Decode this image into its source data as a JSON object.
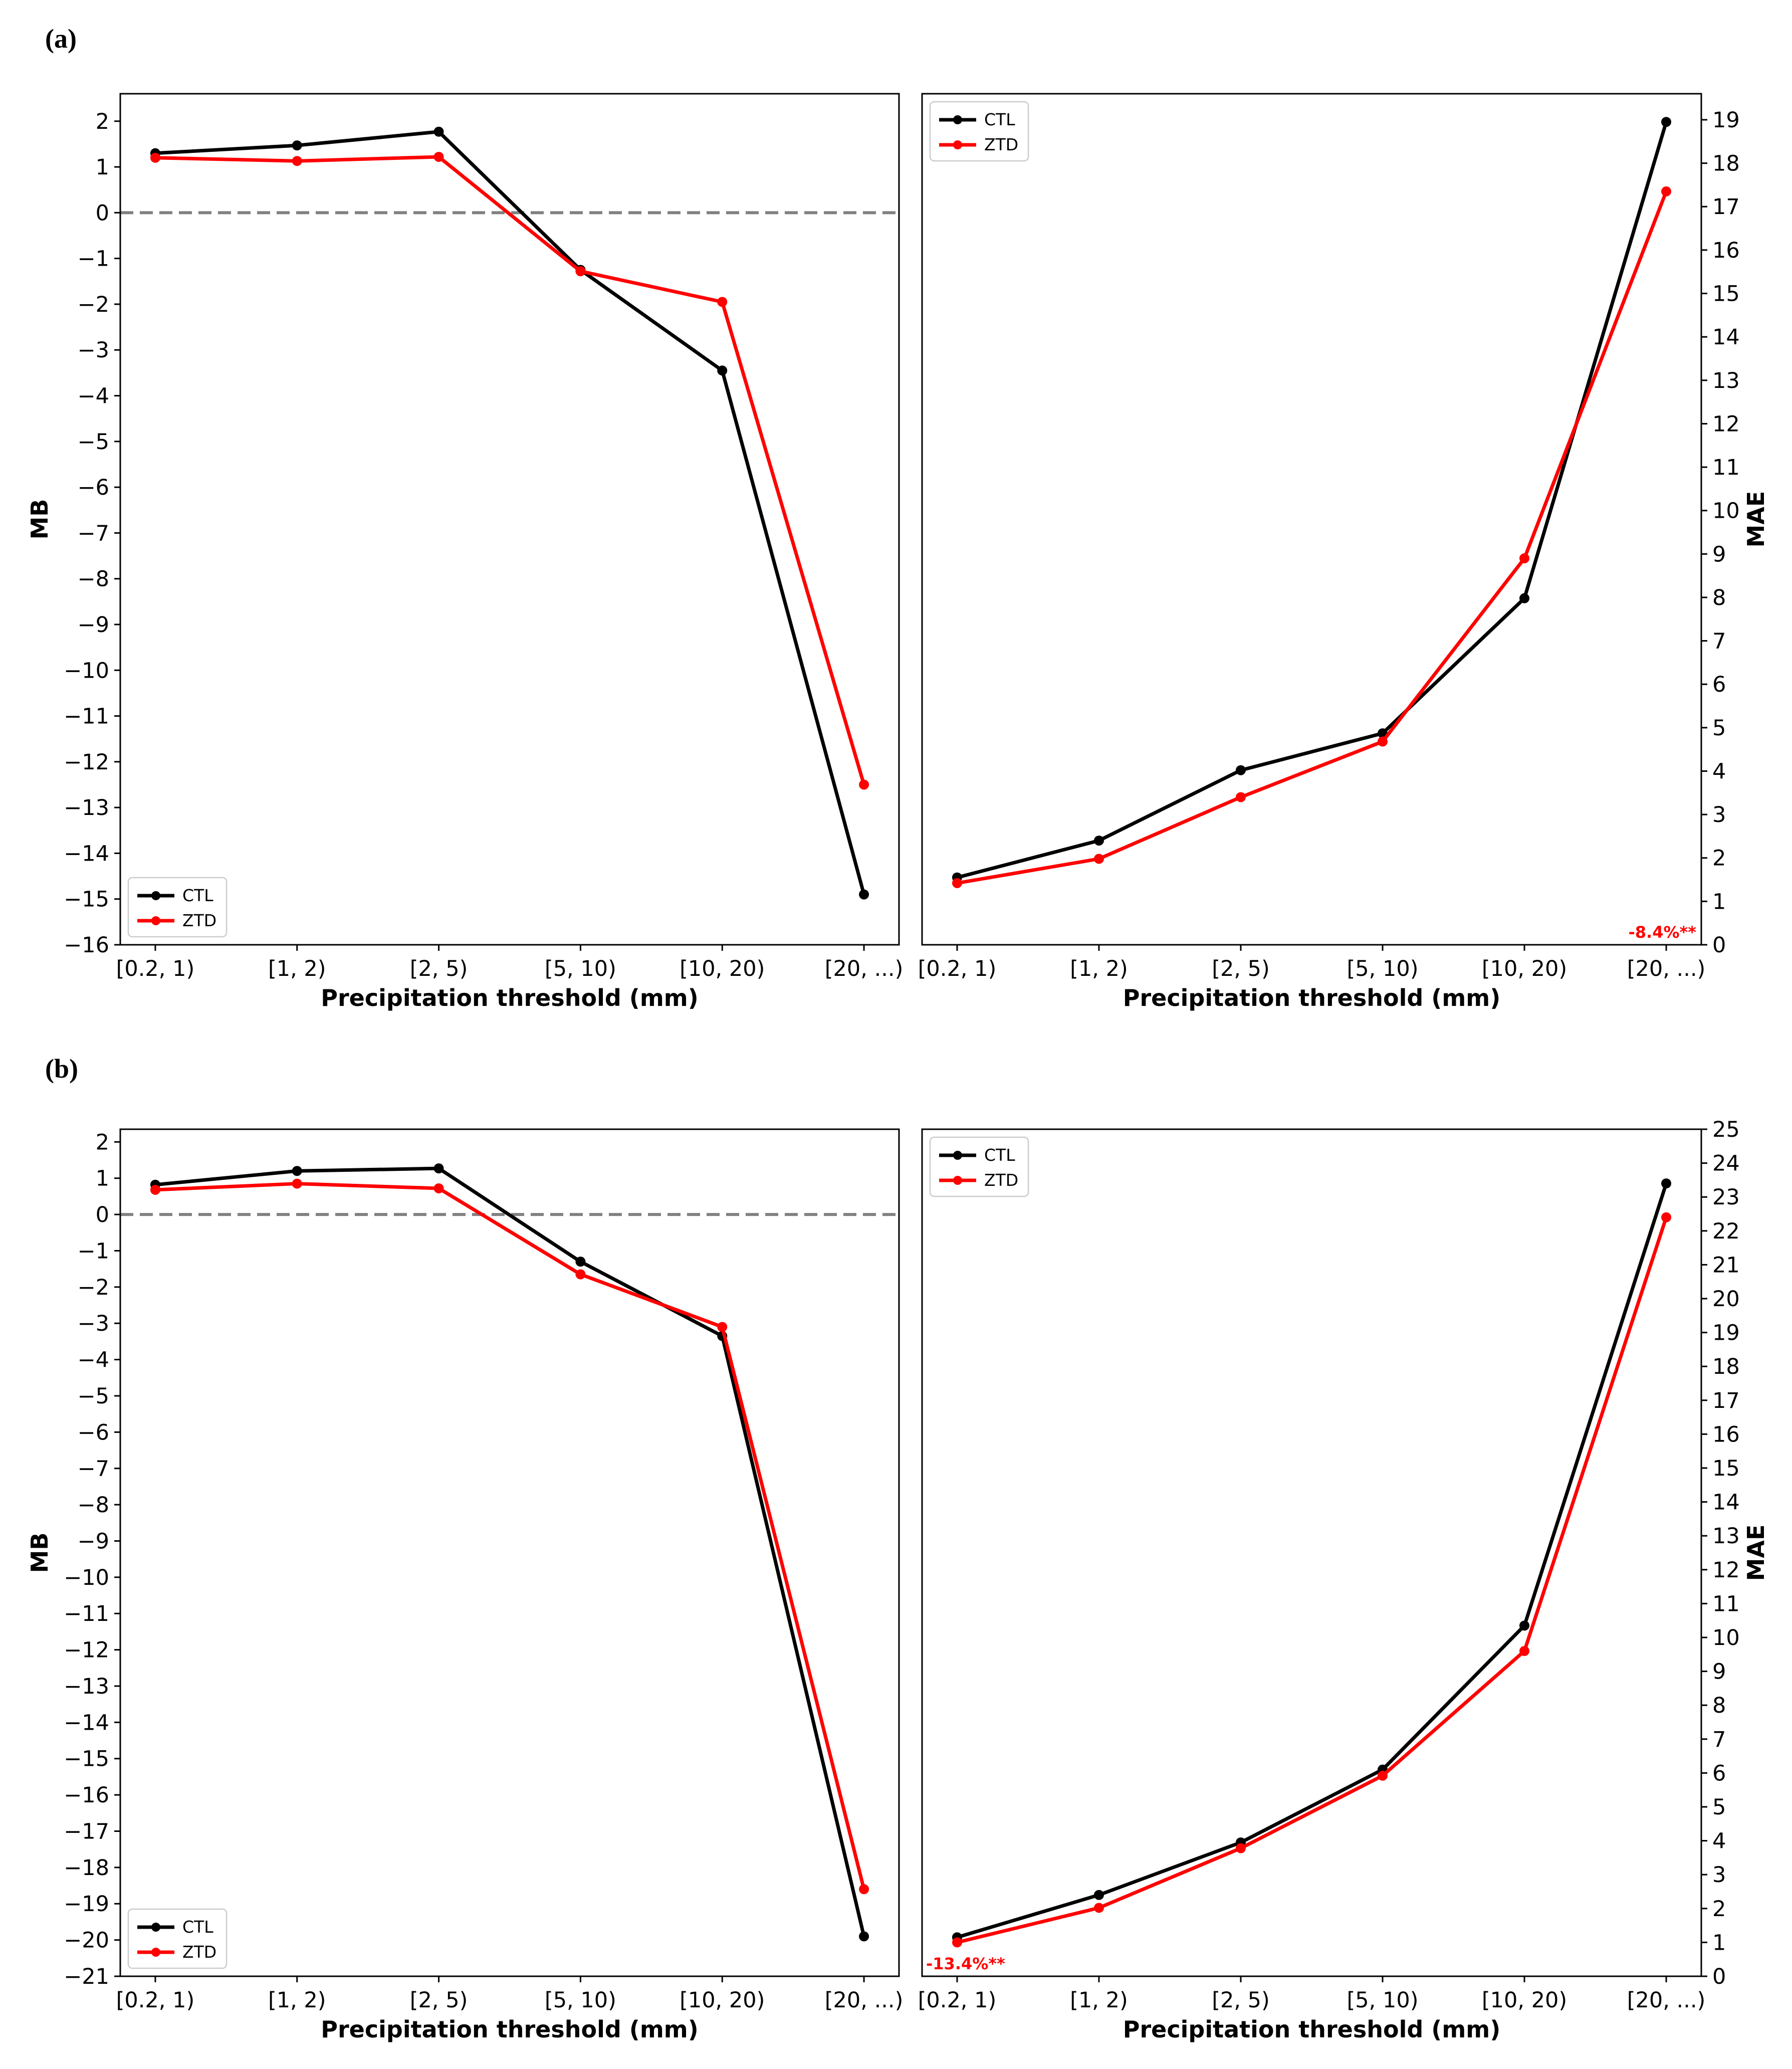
{
  "panels": [
    {
      "label": "(a)"
    },
    {
      "label": "(b)"
    }
  ],
  "colors": {
    "CTL": "#000000",
    "ZTD": "#ff0000",
    "zero_line": "#808080",
    "annotation": "#ff0000"
  },
  "chart_data": [
    {
      "panel": "(a)",
      "side": "left",
      "type": "line",
      "categories": [
        "[0.2, 1)",
        "[1, 2)",
        "[2, 5)",
        "[5, 10)",
        "[10, 20)",
        "[20, ...)"
      ],
      "xlabel": "Precipitation threshold (mm)",
      "ylabel": "MB",
      "ylim": [
        -16,
        2.6
      ],
      "yticks": [
        2,
        1,
        0,
        -1,
        -2,
        -3,
        -4,
        -5,
        -6,
        -7,
        -8,
        -9,
        -10,
        -11,
        -12,
        -13,
        -14,
        -15,
        -16
      ],
      "yaxis_side": "left",
      "zero_line": true,
      "legend": {
        "position": "lower-left",
        "entries": [
          "CTL",
          "ZTD"
        ]
      },
      "series": [
        {
          "name": "CTL",
          "values": [
            1.3,
            1.47,
            1.77,
            -1.25,
            -3.45,
            -14.9
          ]
        },
        {
          "name": "ZTD",
          "values": [
            1.2,
            1.13,
            1.22,
            -1.28,
            -1.95,
            -12.5
          ]
        }
      ]
    },
    {
      "panel": "(a)",
      "side": "right",
      "type": "line",
      "categories": [
        "[0.2, 1)",
        "[1, 2)",
        "[2, 5)",
        "[5, 10)",
        "[10, 20)",
        "[20, ...)"
      ],
      "xlabel": "Precipitation threshold (mm)",
      "ylabel": "MAE",
      "ylim": [
        0,
        19.6
      ],
      "yticks": [
        0,
        1,
        2,
        3,
        4,
        5,
        6,
        7,
        8,
        9,
        10,
        11,
        12,
        13,
        14,
        15,
        16,
        17,
        18,
        19
      ],
      "yaxis_side": "right",
      "zero_line": false,
      "legend": {
        "position": "upper-left",
        "entries": [
          "CTL",
          "ZTD"
        ]
      },
      "annotation": {
        "text": "-8.4%**",
        "position": "lower-right"
      },
      "series": [
        {
          "name": "CTL",
          "values": [
            1.55,
            2.4,
            4.02,
            4.87,
            7.98,
            18.95
          ]
        },
        {
          "name": "ZTD",
          "values": [
            1.42,
            1.98,
            3.4,
            4.68,
            8.9,
            17.35
          ]
        }
      ]
    },
    {
      "panel": "(b)",
      "side": "left",
      "type": "line",
      "categories": [
        "[0.2, 1)",
        "[1, 2)",
        "[2, 5)",
        "[5, 10)",
        "[10, 20)",
        "[20, ...)"
      ],
      "xlabel": "Precipitation threshold (mm)",
      "ylabel": "MB",
      "ylim": [
        -21,
        2.35
      ],
      "yticks": [
        2,
        1,
        0,
        -1,
        -2,
        -3,
        -4,
        -5,
        -6,
        -7,
        -8,
        -9,
        -10,
        -11,
        -12,
        -13,
        -14,
        -15,
        -16,
        -17,
        -18,
        -19,
        -20,
        -21
      ],
      "yaxis_side": "left",
      "zero_line": true,
      "legend": {
        "position": "lower-left",
        "entries": [
          "CTL",
          "ZTD"
        ]
      },
      "series": [
        {
          "name": "CTL",
          "values": [
            0.82,
            1.2,
            1.27,
            -1.3,
            -3.35,
            -19.9
          ]
        },
        {
          "name": "ZTD",
          "values": [
            0.68,
            0.85,
            0.72,
            -1.65,
            -3.1,
            -18.6
          ]
        }
      ]
    },
    {
      "panel": "(b)",
      "side": "right",
      "type": "line",
      "categories": [
        "[0.2, 1)",
        "[1, 2)",
        "[2, 5)",
        "[5, 10)",
        "[10, 20)",
        "[20, ...)"
      ],
      "xlabel": "Precipitation threshold (mm)",
      "ylabel": "MAE",
      "ylim": [
        0,
        25
      ],
      "yticks": [
        0,
        1,
        2,
        3,
        4,
        5,
        6,
        7,
        8,
        9,
        10,
        11,
        12,
        13,
        14,
        15,
        16,
        17,
        18,
        19,
        20,
        21,
        22,
        23,
        24,
        25
      ],
      "yaxis_side": "right",
      "zero_line": false,
      "legend": {
        "position": "upper-left",
        "entries": [
          "CTL",
          "ZTD"
        ]
      },
      "annotation": {
        "text": "-13.4%**",
        "position": "lower-left"
      },
      "series": [
        {
          "name": "CTL",
          "values": [
            1.15,
            2.4,
            3.95,
            6.1,
            10.35,
            23.4
          ]
        },
        {
          "name": "ZTD",
          "values": [
            1.0,
            2.02,
            3.78,
            5.92,
            9.6,
            22.4
          ]
        }
      ]
    }
  ]
}
